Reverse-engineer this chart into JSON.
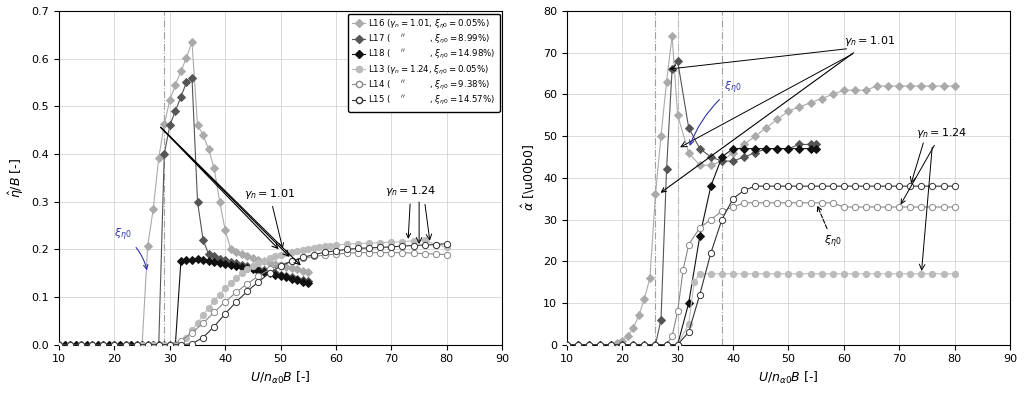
{
  "left": {
    "xlabel": "$U/n_{\\alpha0}B$ [-]",
    "ylabel": "$\\hat{\\eta}/B$ [-]",
    "xlim": [
      10,
      90
    ],
    "ylim": [
      0,
      0.7
    ],
    "xticks": [
      10,
      20,
      30,
      40,
      50,
      60,
      70,
      80,
      90
    ],
    "yticks": [
      0.0,
      0.1,
      0.2,
      0.3,
      0.4,
      0.5,
      0.6,
      0.7
    ],
    "vline_x": 29.0,
    "series": {
      "L16": {
        "color": "#aaaaaa",
        "marker": "D",
        "mfc": "#aaaaaa",
        "lw": 0.8,
        "x": [
          10,
          11,
          12,
          13,
          14,
          15,
          16,
          17,
          18,
          19,
          20,
          21,
          22,
          23,
          24,
          25,
          26,
          27,
          28,
          29,
          30,
          31,
          32,
          33,
          34,
          35,
          36,
          37,
          38,
          39,
          40,
          41,
          42,
          43,
          44,
          45,
          46,
          47,
          48,
          49,
          50,
          51,
          52,
          53,
          54,
          55
        ],
        "y": [
          0,
          0,
          0,
          0,
          0,
          0,
          0,
          0,
          0,
          0,
          0,
          0,
          0,
          0,
          0,
          0,
          0.207,
          0.284,
          0.392,
          0.462,
          0.513,
          0.545,
          0.573,
          0.602,
          0.635,
          0.46,
          0.44,
          0.41,
          0.37,
          0.3,
          0.24,
          0.2,
          0.195,
          0.19,
          0.186,
          0.182,
          0.178,
          0.175,
          0.172,
          0.169,
          0.166,
          0.163,
          0.16,
          0.158,
          0.155,
          0.152
        ]
      },
      "L17": {
        "color": "#555555",
        "marker": "D",
        "mfc": "#555555",
        "lw": 0.8,
        "x": [
          10,
          11,
          12,
          13,
          14,
          15,
          16,
          17,
          18,
          19,
          20,
          21,
          22,
          23,
          24,
          25,
          26,
          27,
          28,
          29,
          30,
          31,
          32,
          33,
          34,
          35,
          36,
          37,
          38,
          39,
          40,
          41,
          42,
          43,
          44,
          45,
          46,
          47,
          48,
          49,
          50,
          51,
          52,
          53,
          54,
          55
        ],
        "y": [
          0,
          0,
          0,
          0,
          0,
          0,
          0,
          0,
          0,
          0,
          0,
          0,
          0,
          0,
          0,
          0,
          0,
          0,
          0,
          0.4,
          0.46,
          0.49,
          0.52,
          0.55,
          0.56,
          0.3,
          0.22,
          0.19,
          0.185,
          0.18,
          0.177,
          0.174,
          0.171,
          0.168,
          0.165,
          0.162,
          0.159,
          0.156,
          0.153,
          0.15,
          0.147,
          0.144,
          0.141,
          0.138,
          0.135,
          0.133
        ]
      },
      "L18": {
        "color": "#111111",
        "marker": "D",
        "mfc": "#111111",
        "lw": 0.8,
        "x": [
          10,
          11,
          12,
          13,
          14,
          15,
          16,
          17,
          18,
          19,
          20,
          21,
          22,
          23,
          24,
          25,
          26,
          27,
          28,
          29,
          30,
          31,
          32,
          33,
          34,
          35,
          36,
          37,
          38,
          39,
          40,
          41,
          42,
          43,
          44,
          45,
          46,
          47,
          48,
          49,
          50,
          51,
          52,
          53,
          54,
          55
        ],
        "y": [
          0,
          0,
          0,
          0,
          0,
          0,
          0,
          0,
          0,
          0,
          0,
          0,
          0,
          0,
          0,
          0,
          0,
          0,
          0,
          0,
          0,
          0,
          0.175,
          0.177,
          0.178,
          0.179,
          0.178,
          0.176,
          0.174,
          0.172,
          0.17,
          0.168,
          0.165,
          0.163,
          0.16,
          0.158,
          0.155,
          0.152,
          0.15,
          0.147,
          0.144,
          0.141,
          0.138,
          0.135,
          0.132,
          0.13
        ]
      },
      "L13": {
        "color": "#bbbbbb",
        "marker": "o",
        "mfc": "#bbbbbb",
        "lw": 0.8,
        "x": [
          10,
          12,
          14,
          16,
          18,
          20,
          22,
          24,
          25,
          26,
          27,
          28,
          29,
          30,
          31,
          32,
          33,
          34,
          35,
          36,
          37,
          38,
          39,
          40,
          41,
          42,
          43,
          44,
          45,
          46,
          47,
          48,
          49,
          50,
          51,
          52,
          53,
          54,
          55,
          56,
          57,
          58,
          59,
          60,
          62,
          64,
          66,
          68,
          70,
          72,
          74,
          76,
          78,
          80
        ],
        "y": [
          0,
          0,
          0,
          0,
          0,
          0,
          0,
          0,
          0,
          0,
          0,
          0,
          0,
          0,
          0,
          0.005,
          0.015,
          0.03,
          0.045,
          0.062,
          0.077,
          0.092,
          0.105,
          0.118,
          0.13,
          0.14,
          0.15,
          0.158,
          0.165,
          0.171,
          0.176,
          0.181,
          0.185,
          0.189,
          0.192,
          0.195,
          0.197,
          0.199,
          0.201,
          0.203,
          0.205,
          0.207,
          0.208,
          0.209,
          0.211,
          0.212,
          0.213,
          0.214,
          0.215,
          0.216,
          0.218,
          0.219,
          0.21,
          0.205
        ]
      },
      "L14": {
        "color": "#888888",
        "marker": "o",
        "mfc": "white",
        "lw": 0.8,
        "x": [
          10,
          12,
          14,
          16,
          18,
          20,
          22,
          24,
          26,
          28,
          30,
          32,
          34,
          36,
          38,
          40,
          42,
          44,
          46,
          48,
          50,
          52,
          54,
          56,
          58,
          60,
          62,
          64,
          66,
          68,
          70,
          72,
          74,
          76,
          78,
          80
        ],
        "y": [
          0,
          0,
          0,
          0,
          0,
          0,
          0,
          0,
          0,
          0,
          0,
          0.008,
          0.025,
          0.045,
          0.068,
          0.09,
          0.11,
          0.128,
          0.144,
          0.158,
          0.168,
          0.175,
          0.181,
          0.185,
          0.188,
          0.19,
          0.192,
          0.193,
          0.193,
          0.193,
          0.193,
          0.193,
          0.192,
          0.191,
          0.19,
          0.189
        ]
      },
      "L15": {
        "color": "#333333",
        "marker": "o",
        "mfc": "white",
        "lw": 0.8,
        "x": [
          10,
          12,
          14,
          16,
          18,
          20,
          22,
          24,
          26,
          28,
          30,
          32,
          34,
          36,
          38,
          40,
          42,
          44,
          46,
          48,
          50,
          52,
          54,
          56,
          58,
          60,
          62,
          64,
          66,
          68,
          70,
          72,
          74,
          76,
          78,
          80
        ],
        "y": [
          0,
          0,
          0,
          0,
          0,
          0,
          0,
          0,
          0,
          0,
          0,
          0,
          0.002,
          0.015,
          0.038,
          0.065,
          0.09,
          0.112,
          0.132,
          0.15,
          0.165,
          0.175,
          0.183,
          0.189,
          0.194,
          0.197,
          0.2,
          0.202,
          0.203,
          0.204,
          0.205,
          0.207,
          0.208,
          0.209,
          0.21,
          0.212
        ]
      }
    }
  },
  "right": {
    "xlabel": "$U/n_{\\alpha0}B$ [-]",
    "ylabel": "$\\hat{\\alpha}$ [\\u00b0]",
    "xlim": [
      10,
      90
    ],
    "ylim": [
      0,
      80
    ],
    "xticks": [
      10,
      20,
      30,
      40,
      50,
      60,
      70,
      80,
      90
    ],
    "yticks": [
      0,
      10,
      20,
      30,
      40,
      50,
      60,
      70,
      80
    ],
    "vlines_x": [
      26,
      30,
      38
    ],
    "series": {
      "L16": {
        "color": "#aaaaaa",
        "marker": "D",
        "mfc": "#aaaaaa",
        "lw": 0.8,
        "x": [
          10,
          12,
          14,
          16,
          18,
          19,
          20,
          21,
          22,
          23,
          24,
          25,
          26,
          27,
          28,
          29,
          30,
          32,
          34,
          36,
          38,
          40,
          42,
          44,
          46,
          48,
          50,
          52,
          54,
          56,
          58,
          60,
          62,
          64,
          66,
          68,
          70,
          72,
          74,
          76,
          78,
          80
        ],
        "y": [
          0,
          0,
          0,
          0,
          0,
          0.5,
          1,
          2,
          4,
          7,
          11,
          16,
          36,
          50,
          63,
          74,
          55,
          46,
          43,
          43,
          44,
          46,
          48,
          50,
          52,
          54,
          56,
          57,
          58,
          59,
          60,
          61,
          61,
          61,
          62,
          62,
          62,
          62,
          62,
          62,
          62,
          62
        ]
      },
      "L17": {
        "color": "#555555",
        "marker": "D",
        "mfc": "#555555",
        "lw": 0.8,
        "x": [
          10,
          12,
          14,
          16,
          18,
          20,
          22,
          24,
          26,
          27,
          28,
          29,
          30,
          32,
          34,
          36,
          38,
          40,
          42,
          44,
          46,
          48,
          50,
          52,
          54,
          55
        ],
        "y": [
          0,
          0,
          0,
          0,
          0,
          0,
          0,
          0,
          0,
          6,
          42,
          66,
          68,
          52,
          47,
          45,
          44,
          44,
          45,
          46,
          47,
          47,
          47,
          48,
          48,
          48
        ]
      },
      "L18": {
        "color": "#111111",
        "marker": "D",
        "mfc": "#111111",
        "lw": 0.8,
        "x": [
          10,
          12,
          14,
          16,
          18,
          20,
          22,
          24,
          26,
          28,
          30,
          32,
          34,
          36,
          38,
          40,
          42,
          44,
          46,
          48,
          50,
          52,
          54,
          55
        ],
        "y": [
          0,
          0,
          0,
          0,
          0,
          0,
          0,
          0,
          0,
          0,
          0,
          10,
          26,
          38,
          45,
          47,
          47,
          47,
          47,
          47,
          47,
          47,
          47,
          47
        ]
      },
      "L13": {
        "color": "#bbbbbb",
        "marker": "o",
        "mfc": "#bbbbbb",
        "lw": 0.8,
        "x": [
          10,
          12,
          14,
          16,
          18,
          20,
          22,
          24,
          26,
          28,
          30,
          32,
          33,
          34,
          36,
          38,
          40,
          42,
          44,
          46,
          48,
          50,
          52,
          54,
          56,
          58,
          60,
          62,
          64,
          66,
          68,
          70,
          72,
          74,
          76,
          78,
          80
        ],
        "y": [
          0,
          0,
          0,
          0,
          0,
          0,
          0,
          0,
          0,
          0,
          0,
          5,
          15,
          17,
          17,
          17,
          17,
          17,
          17,
          17,
          17,
          17,
          17,
          17,
          17,
          17,
          17,
          17,
          17,
          17,
          17,
          17,
          17,
          17,
          17,
          17,
          17
        ]
      },
      "L14": {
        "color": "#888888",
        "marker": "o",
        "mfc": "white",
        "lw": 0.8,
        "x": [
          10,
          12,
          14,
          16,
          18,
          20,
          22,
          24,
          26,
          28,
          29,
          30,
          31,
          32,
          34,
          36,
          38,
          40,
          42,
          44,
          46,
          48,
          50,
          52,
          54,
          56,
          58,
          60,
          62,
          64,
          66,
          68,
          70,
          72,
          74,
          76,
          78,
          80
        ],
        "y": [
          0,
          0,
          0,
          0,
          0,
          0,
          0,
          0,
          0,
          0,
          2,
          8,
          18,
          24,
          28,
          30,
          32,
          33,
          34,
          34,
          34,
          34,
          34,
          34,
          34,
          34,
          34,
          33,
          33,
          33,
          33,
          33,
          33,
          33,
          33,
          33,
          33,
          33
        ]
      },
      "L15": {
        "color": "#333333",
        "marker": "o",
        "mfc": "white",
        "lw": 0.8,
        "x": [
          10,
          12,
          14,
          16,
          18,
          20,
          22,
          24,
          26,
          28,
          30,
          32,
          34,
          36,
          38,
          40,
          42,
          44,
          46,
          48,
          50,
          52,
          54,
          56,
          58,
          60,
          62,
          64,
          66,
          68,
          70,
          72,
          74,
          76,
          78,
          80
        ],
        "y": [
          0,
          0,
          0,
          0,
          0,
          0,
          0,
          0,
          0,
          0,
          0,
          3,
          12,
          22,
          30,
          35,
          37,
          38,
          38,
          38,
          38,
          38,
          38,
          38,
          38,
          38,
          38,
          38,
          38,
          38,
          38,
          38,
          38,
          38,
          38,
          38
        ]
      }
    }
  }
}
